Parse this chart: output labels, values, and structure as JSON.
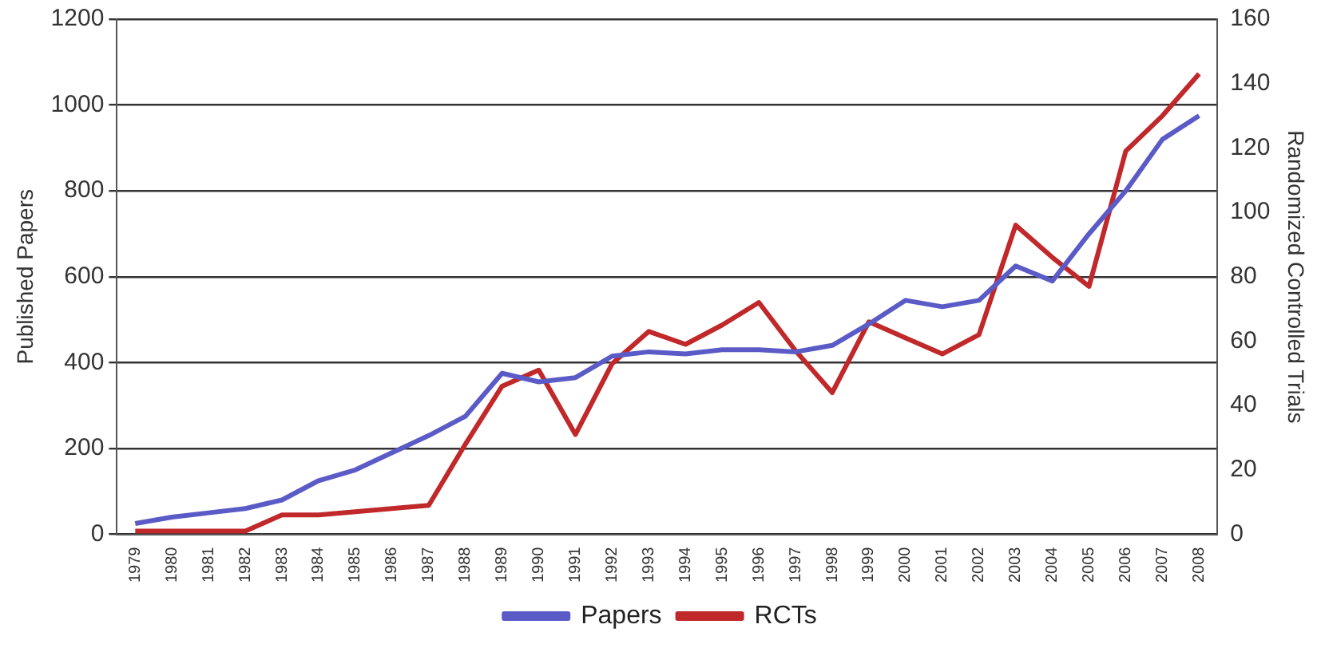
{
  "chart_data": {
    "type": "line",
    "ylabel": "Published Papers",
    "y2label": "Randomized Controlled Trials",
    "categories": [
      "1979",
      "1980",
      "1981",
      "1982",
      "1983",
      "1984",
      "1985",
      "1986",
      "1987",
      "1988",
      "1989",
      "1990",
      "1991",
      "1992",
      "1993",
      "1994",
      "1995",
      "1996",
      "1997",
      "1998",
      "1999",
      "2000",
      "2001",
      "2002",
      "2003",
      "2004",
      "2005",
      "2006",
      "2007",
      "2008"
    ],
    "series": [
      {
        "name": "Papers",
        "color": "#5b5bc8",
        "values": [
          25,
          40,
          50,
          60,
          80,
          125,
          150,
          190,
          230,
          275,
          375,
          355,
          365,
          415,
          425,
          420,
          430,
          430,
          425,
          440,
          490,
          545,
          530,
          545,
          625,
          590,
          700,
          800,
          920,
          975
        ]
      },
      {
        "name": "RCTs",
        "color": "#c0282a",
        "axis": "y2",
        "values": [
          1,
          1,
          1,
          1,
          6,
          6,
          7,
          8,
          9,
          28,
          46,
          51,
          31,
          53,
          63,
          59,
          65,
          72,
          57,
          44,
          66,
          61,
          56,
          62,
          96,
          86,
          77,
          119,
          130,
          143
        ]
      }
    ],
    "ylim": [
      0,
      1200
    ],
    "yticks": [
      0,
      200,
      400,
      600,
      800,
      1000,
      1200
    ],
    "y2lim": [
      0,
      160
    ],
    "y2ticks": [
      0,
      20,
      40,
      60,
      80,
      100,
      120,
      140,
      160
    ],
    "grid": "y",
    "legend": "bottom",
    "marker": "none",
    "line_style": "solid"
  }
}
